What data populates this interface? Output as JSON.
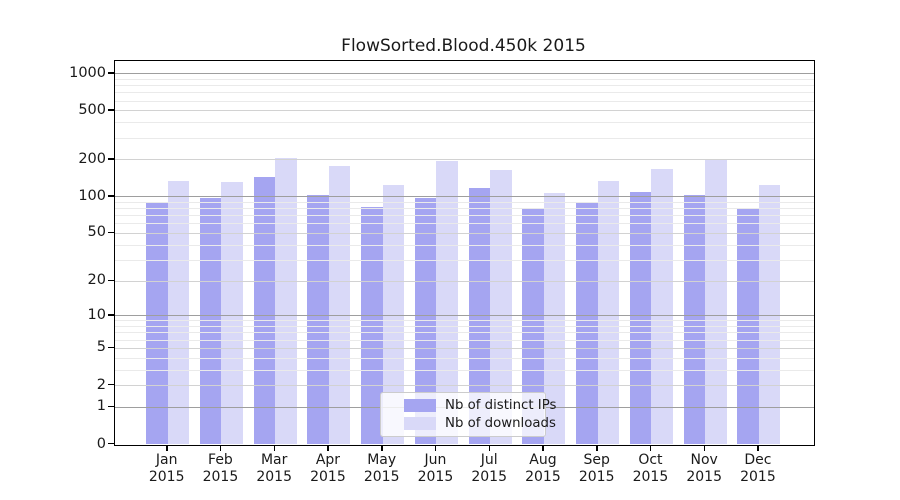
{
  "title": "FlowSorted.Blood.450k 2015",
  "colors": {
    "distinct_ips": "#a5a5f1",
    "downloads": "#d9d9f8",
    "grid_power10": "#9e9e9e",
    "grid_labeled": "#d2d2d2",
    "grid_minor": "#eaeaea",
    "axis": "#000000",
    "text": "#1a1a1a",
    "legend_border": "#cccccc"
  },
  "legend": {
    "items": [
      {
        "label": "Nb of distinct IPs",
        "color_key": "distinct_ips"
      },
      {
        "label": "Nb of downloads",
        "color_key": "downloads"
      }
    ]
  },
  "y_axis": {
    "scale": "log1p",
    "tick_labels": [
      0,
      1,
      2,
      5,
      10,
      20,
      50,
      100,
      200,
      500,
      1000
    ],
    "minor_gridlines": [
      3,
      4,
      6,
      7,
      8,
      9,
      30,
      40,
      60,
      70,
      80,
      90,
      300,
      400,
      600,
      700,
      800,
      900
    ]
  },
  "x_axis": {
    "months": [
      "Jan",
      "Feb",
      "Mar",
      "Apr",
      "May",
      "Jun",
      "Jul",
      "Aug",
      "Sep",
      "Oct",
      "Nov",
      "Dec"
    ],
    "year": "2015"
  },
  "chart_data": {
    "type": "bar",
    "title": "FlowSorted.Blood.450k 2015",
    "categories": [
      "Jan 2015",
      "Feb 2015",
      "Mar 2015",
      "Apr 2015",
      "May 2015",
      "Jun 2015",
      "Jul 2015",
      "Aug 2015",
      "Sep 2015",
      "Oct 2015",
      "Nov 2015",
      "Dec 2015"
    ],
    "series": [
      {
        "name": "Nb of distinct IPs",
        "color_key": "distinct_ips",
        "values": [
          89,
          97,
          145,
          104,
          82,
          97,
          119,
          79,
          89,
          109,
          103,
          80
        ]
      },
      {
        "name": "Nb of downloads",
        "color_key": "downloads",
        "values": [
          135,
          133,
          208,
          179,
          125,
          197,
          164,
          108,
          134,
          167,
          200,
          125
        ]
      }
    ],
    "xlabel": "",
    "ylabel": "",
    "yscale": "log1p",
    "yticks": [
      0,
      1,
      2,
      5,
      10,
      20,
      50,
      100,
      200,
      500,
      1000
    ],
    "ylim": [
      0,
      1283
    ],
    "grid": true,
    "legend_position": "inside lower center"
  }
}
